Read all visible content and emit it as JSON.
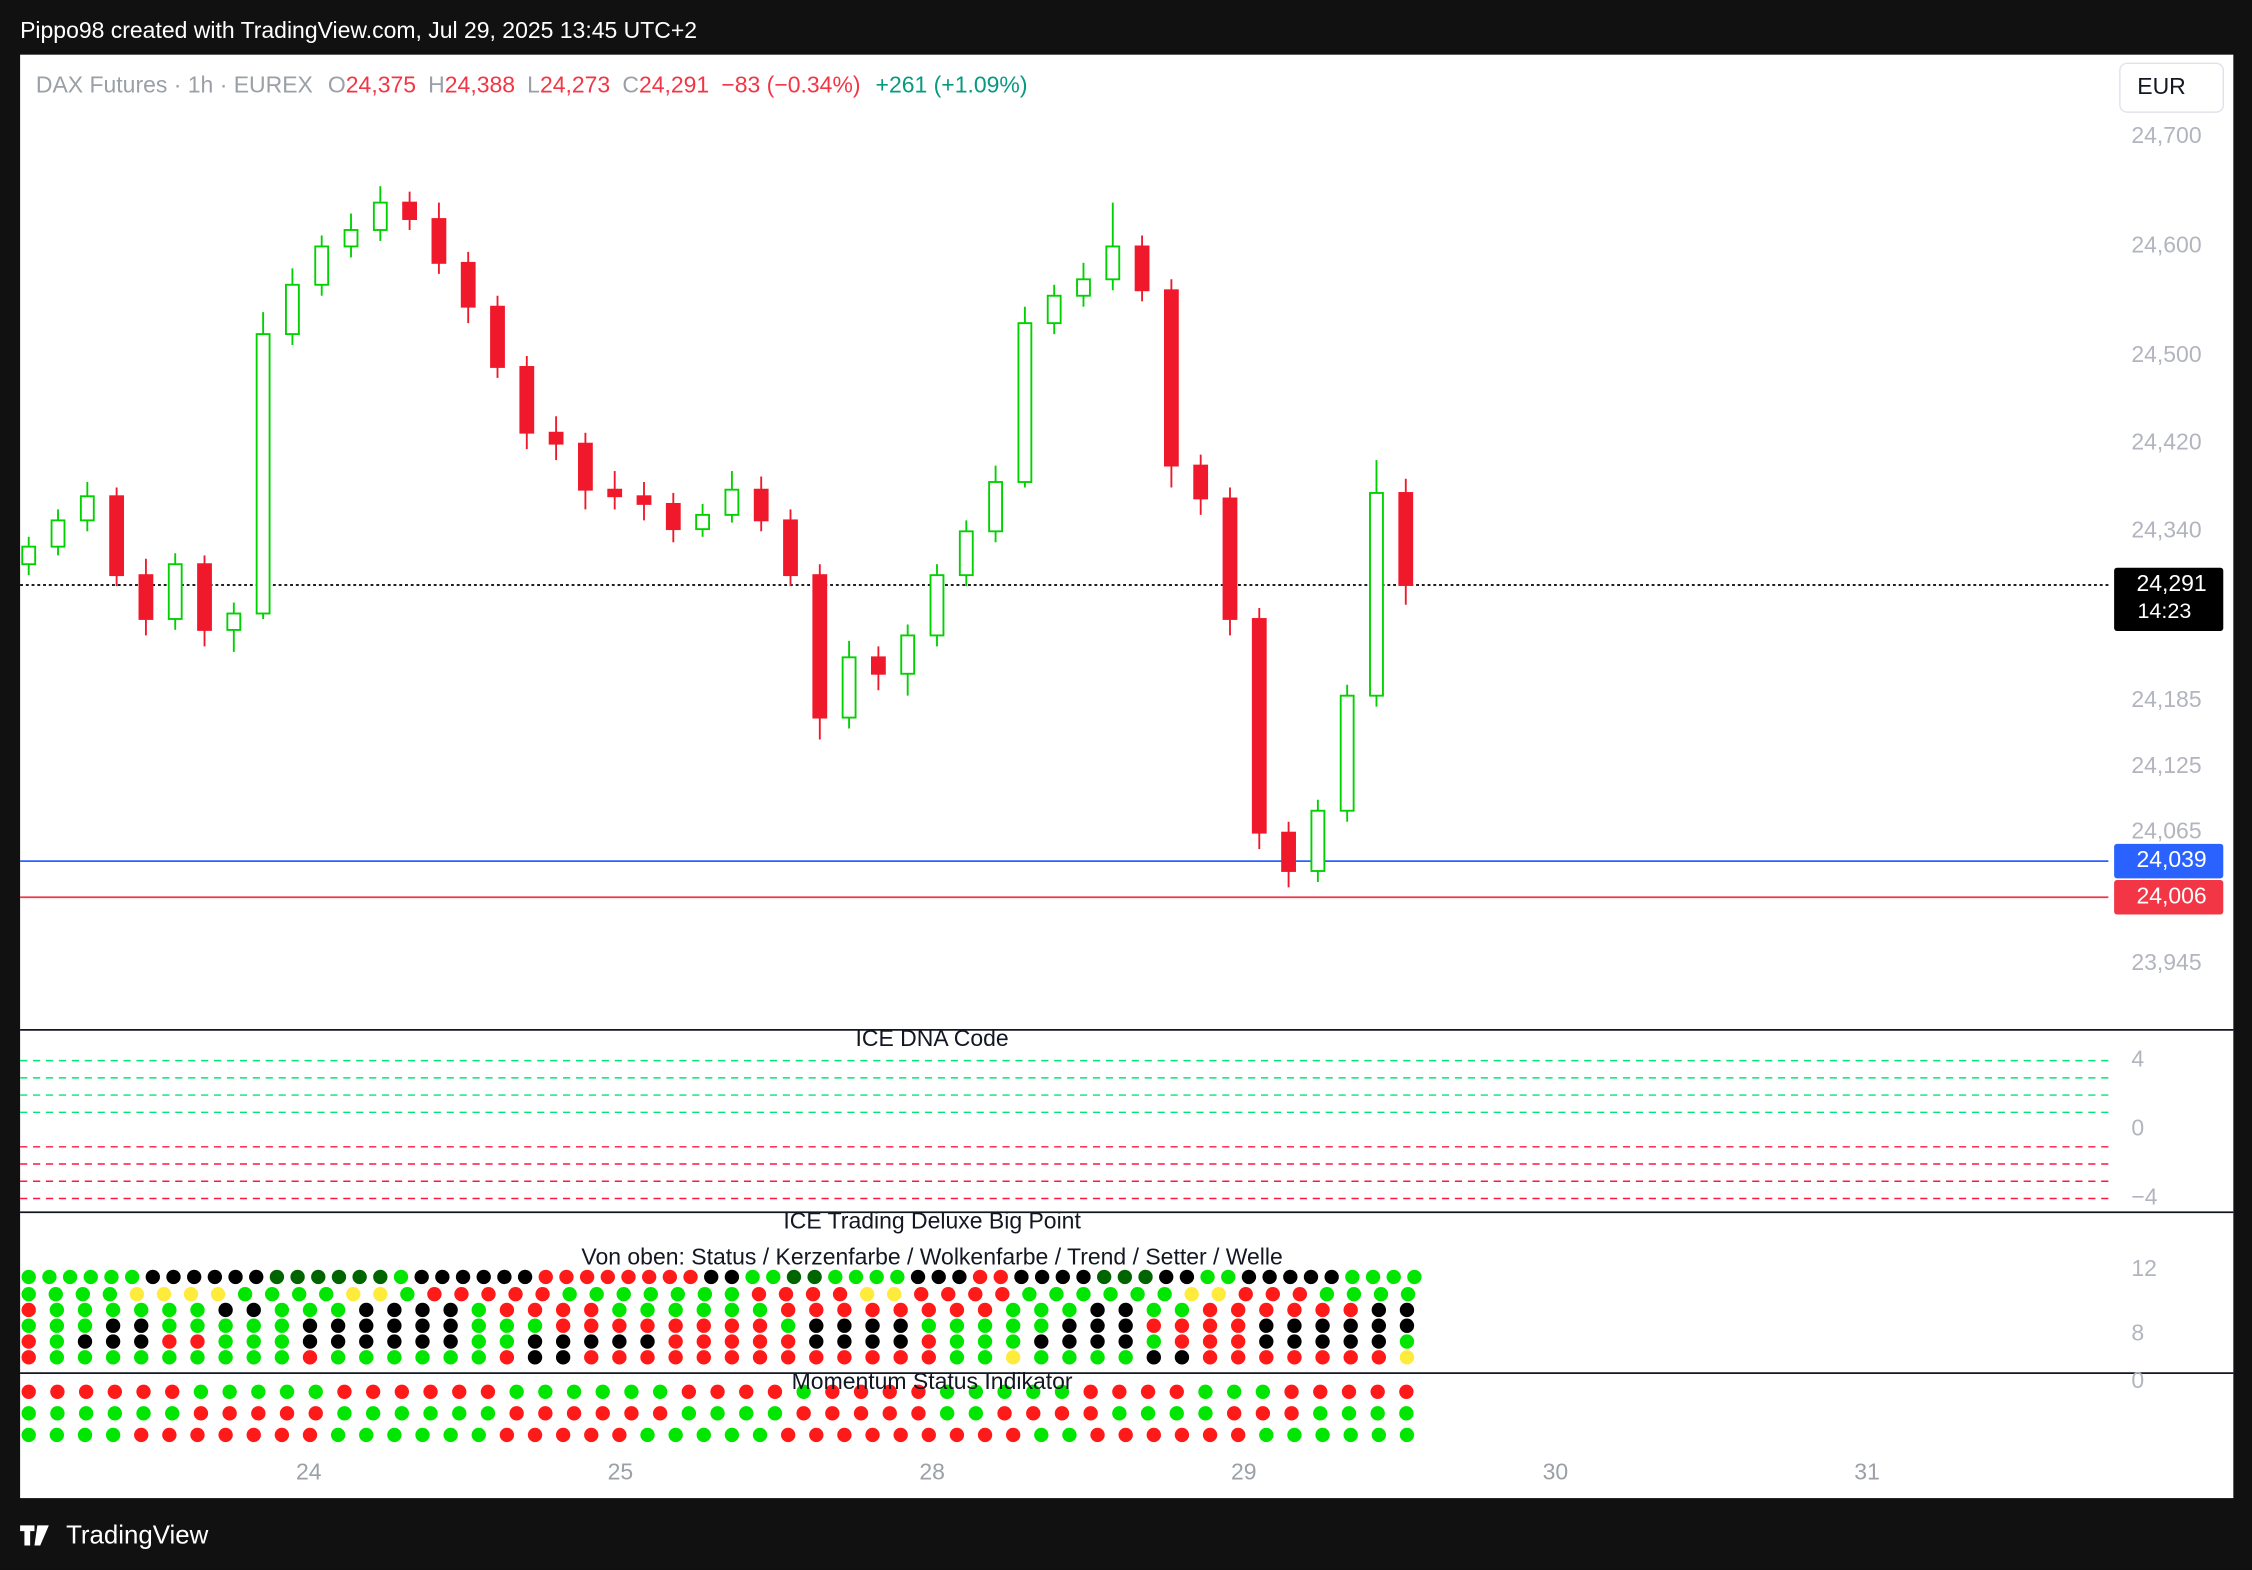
{
  "header": {
    "text": "Pippo98 created with TradingView.com, Jul 29, 2025 13:45 UTC+2"
  },
  "chart_data": {
    "type": "candlestick",
    "title": "DAX Futures · 1h · EUREX",
    "currency": "EUR",
    "legend": {
      "o_label": "O",
      "o": "24,375",
      "h_label": "H",
      "h": "24,388",
      "l_label": "L",
      "l": "24,273",
      "c_label": "C",
      "c": "24,291",
      "change": "−83 (−0.34%)",
      "change_range": "+261 (+1.09%)"
    },
    "up_color": "#00d100",
    "down_color": "#f0192b",
    "candles": [
      [
        24310,
        24335,
        24300,
        24326
      ],
      [
        24326,
        24360,
        24318,
        24350
      ],
      [
        24350,
        24385,
        24340,
        24372
      ],
      [
        24372,
        24380,
        24290,
        24300
      ],
      [
        24300,
        24315,
        24245,
        24260
      ],
      [
        24260,
        24320,
        24250,
        24310
      ],
      [
        24310,
        24318,
        24235,
        24250
      ],
      [
        24250,
        24275,
        24230,
        24265
      ],
      [
        24265,
        24540,
        24260,
        24520
      ],
      [
        24520,
        24580,
        24510,
        24565
      ],
      [
        24565,
        24610,
        24555,
        24600
      ],
      [
        24600,
        24630,
        24590,
        24615
      ],
      [
        24615,
        24655,
        24605,
        24640
      ],
      [
        24640,
        24650,
        24615,
        24625
      ],
      [
        24625,
        24640,
        24575,
        24585
      ],
      [
        24585,
        24595,
        24530,
        24545
      ],
      [
        24545,
        24555,
        24480,
        24490
      ],
      [
        24490,
        24500,
        24415,
        24430
      ],
      [
        24430,
        24445,
        24405,
        24420
      ],
      [
        24420,
        24430,
        24360,
        24378
      ],
      [
        24378,
        24395,
        24360,
        24372
      ],
      [
        24372,
        24385,
        24350,
        24365
      ],
      [
        24365,
        24375,
        24330,
        24342
      ],
      [
        24342,
        24365,
        24335,
        24355
      ],
      [
        24355,
        24395,
        24348,
        24378
      ],
      [
        24378,
        24390,
        24340,
        24350
      ],
      [
        24350,
        24360,
        24290,
        24300
      ],
      [
        24300,
        24310,
        24150,
        24170
      ],
      [
        24170,
        24240,
        24160,
        24225
      ],
      [
        24225,
        24235,
        24195,
        24210
      ],
      [
        24210,
        24255,
        24190,
        24245
      ],
      [
        24245,
        24310,
        24235,
        24300
      ],
      [
        24300,
        24350,
        24290,
        24340
      ],
      [
        24340,
        24400,
        24330,
        24385
      ],
      [
        24385,
        24545,
        24380,
        24530
      ],
      [
        24530,
        24565,
        24520,
        24555
      ],
      [
        24555,
        24585,
        24545,
        24570
      ],
      [
        24570,
        24640,
        24560,
        24600
      ],
      [
        24600,
        24610,
        24550,
        24560
      ],
      [
        24560,
        24570,
        24380,
        24400
      ],
      [
        24400,
        24410,
        24355,
        24370
      ],
      [
        24370,
        24380,
        24245,
        24260
      ],
      [
        24260,
        24270,
        24050,
        24065
      ],
      [
        24065,
        24075,
        24015,
        24030
      ],
      [
        24030,
        24095,
        24020,
        24085
      ],
      [
        24085,
        24200,
        24075,
        24190
      ],
      [
        24190,
        24405,
        24180,
        24375
      ],
      [
        24375,
        24388,
        24273,
        24291
      ]
    ],
    "ylim": [
      23885,
      24775
    ],
    "yticks": [
      {
        "value": 24700,
        "label": "24,700"
      },
      {
        "value": 24600,
        "label": "24,600"
      },
      {
        "value": 24500,
        "label": "24,500"
      },
      {
        "value": 24420,
        "label": "24,420"
      },
      {
        "value": 24340,
        "label": "24,340"
      },
      {
        "value": 24185,
        "label": "24,185"
      },
      {
        "value": 24125,
        "label": "24,125"
      },
      {
        "value": 24065,
        "label": "24,065"
      },
      {
        "value": 23945,
        "label": "23,945"
      }
    ],
    "price_lines": [
      {
        "value": 24291,
        "label": "24,291",
        "sublabel": "14:23",
        "color": "#000000",
        "style": "dotted"
      },
      {
        "value": 24039,
        "label": "24,039",
        "color": "#2962ff",
        "style": "solid"
      },
      {
        "value": 24006,
        "label": "24,006",
        "color": "#f23645",
        "style": "solid"
      }
    ],
    "time_labels": [
      "24",
      "25",
      "28",
      "29",
      "30",
      "31"
    ]
  },
  "panes": [
    {
      "title": "ICE DNA Code",
      "ylim": [
        -4.8,
        5.7
      ],
      "yticks": [
        4,
        0,
        {
          "value": -4,
          "label": "−4"
        }
      ]
    },
    {
      "title": "ICE Trading Deluxe Big Point",
      "subtitle": "Von oben: Status / Kerzenfarbe / Wolkenfarbe / Trend / Setter / Welle",
      "ylim": [
        5.6,
        15.5
      ],
      "yticks": [
        12,
        8
      ],
      "rows": [
        "ggggggkkkkkkddddddgkkkkkkrrrrrrrrkkggddggggkkkrrkkkkdddkkggkkkkkgggg",
        "ggggyyyyggggyygrrrrrgggggggrrrryyrrrrggggggyyrrrgggg",
        "rggggggkkgggkkkkgrrrrggggggrrrrrrrrgggkkggrrrrrrkk",
        "gggkkgggggkkkkkkgggrrrrrrrrgkkkkgggggkkkrrrrkkkkkk",
        "rgkkkrrgggkkkkkkggkkkkkrrrrrkkkkrgggkkkkgrrrkkkkkg",
        "rgggggggggrggggggrkkrrrrrrrrrrrrrggyggggkkrrrrrrry"
      ]
    },
    {
      "title": "Momentum Status Indikator",
      "ylim": [
        -7.7,
        0.5
      ],
      "yticks": [
        0
      ],
      "rows": [
        "rrrrrrgggggrrrrrrggggggrrrrgrrrrgggggrrrrgggrrrrr",
        "ggggggrrrrrggggggrrrrrrggggrrrrrggrrrrggggrrrgggg",
        "ggggrrrrrrrggggggrrrrrgggggrrrrrrrrrggrrrrrrgggggg"
      ]
    }
  ],
  "dot_palette": {
    "g": "#00e600",
    "d": "#006400",
    "k": "#000000",
    "r": "#ff1a1a",
    "y": "#ffeb3b"
  },
  "footer": {
    "brand": "TradingView"
  }
}
